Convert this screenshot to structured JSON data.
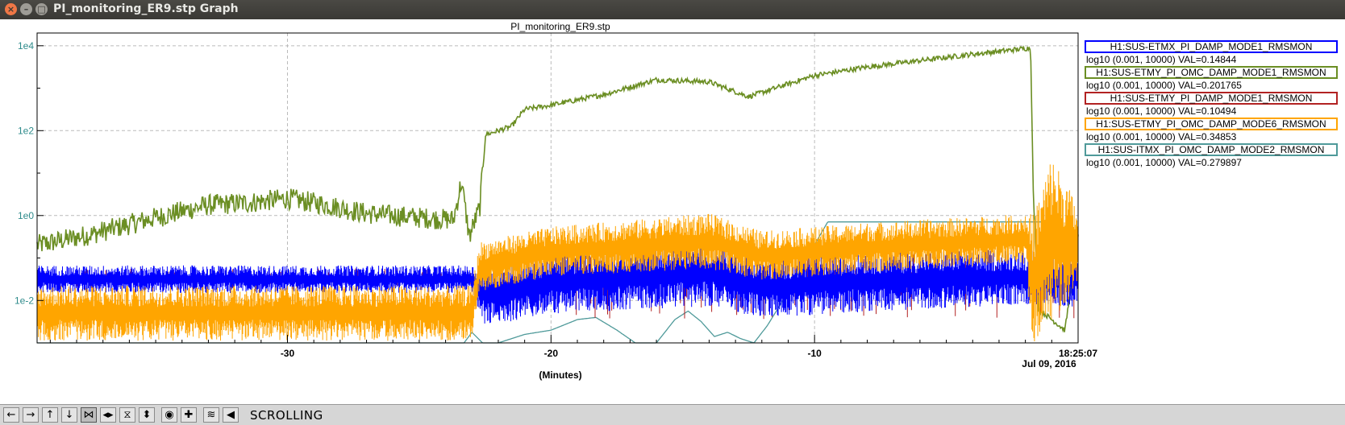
{
  "window": {
    "title": "PI_monitoring_ER9.stp Graph"
  },
  "toolbar": {
    "buttons": [
      {
        "name": "scroll-left-button",
        "icon": "arrow-left-icon",
        "glyph": "←"
      },
      {
        "name": "scroll-right-button",
        "icon": "arrow-right-icon",
        "glyph": "→"
      },
      {
        "name": "scroll-up-button",
        "icon": "arrow-up-icon",
        "glyph": "↑"
      },
      {
        "name": "scroll-down-button",
        "icon": "arrow-down-icon",
        "glyph": "↓"
      },
      {
        "name": "zoom-in-x-button",
        "icon": "zoom-in-x-icon",
        "glyph": "⋈"
      },
      {
        "name": "zoom-out-x-button",
        "icon": "zoom-out-x-icon",
        "glyph": "◂▸"
      },
      {
        "name": "zoom-in-y-button",
        "icon": "zoom-in-y-icon",
        "glyph": "⧖"
      },
      {
        "name": "zoom-out-y-button",
        "icon": "zoom-out-y-icon",
        "glyph": "⬍"
      },
      {
        "name": "default-scale-button",
        "icon": "circle-icon",
        "glyph": "◉"
      },
      {
        "name": "crosshair-button",
        "icon": "crosshair-icon",
        "glyph": "✚"
      },
      {
        "name": "autoscale-button",
        "icon": "autoscale-icon",
        "glyph": "≋"
      },
      {
        "name": "scroll-mode-button",
        "icon": "scroll-left-icon",
        "glyph": "◀"
      }
    ],
    "status": "SCROLLING"
  },
  "chart_data": {
    "type": "line",
    "title": "PI_monitoring_ER9.stp",
    "xlabel": "(Minutes)",
    "ylabel": "",
    "xlim": [
      -39.5,
      0
    ],
    "ylim_log10": [
      -3,
      4.3
    ],
    "y_scale": "log",
    "x_tick_labels": [
      "-30",
      "-20",
      "-10",
      "18:25:07"
    ],
    "x_tick_values": [
      -30,
      -20,
      -10,
      0
    ],
    "x_date_label": "Jul 09, 2016",
    "y_tick_labels": [
      "1e4",
      "1e2",
      "1e0",
      "1e-2"
    ],
    "y_tick_values": [
      10000,
      100,
      1,
      0.01
    ],
    "grid": true,
    "legend_placement": "right",
    "series": [
      {
        "name": "H1:SUS-ETMX_PI_DAMP_MODE1_RMSMON",
        "range_text": "log10 (0.001, 10000) VAL=0.14844",
        "color": "#0000ff",
        "style": "noise",
        "x": [
          -39.5,
          -23.0,
          -22.5,
          -20.0,
          -14.0,
          -12.0,
          -8.0,
          -2.0,
          0.0
        ],
        "y_center_log10": [
          -1.5,
          -1.5,
          -1.9,
          -1.6,
          -1.35,
          -1.7,
          -1.55,
          -1.45,
          -1.5
        ],
        "y_spread_log10": [
          0.25,
          0.25,
          0.55,
          0.55,
          0.6,
          0.55,
          0.55,
          0.5,
          0.5
        ]
      },
      {
        "name": "H1:SUS-ETMY_PI_OMC_DAMP_MODE1_RMSMON",
        "range_text": "log10 (0.001, 10000) VAL=0.201765",
        "color": "#6b8e23",
        "style": "line",
        "x": [
          -39.5,
          -37.5,
          -35.0,
          -33.0,
          -31.5,
          -30.0,
          -28.5,
          -27.0,
          -25.0,
          -23.7,
          -23.4,
          -23.1,
          -22.7,
          -22.5,
          -21.5,
          -21.0,
          -20.0,
          -18.0,
          -16.0,
          -14.0,
          -12.5,
          -12.0,
          -10.0,
          -8.0,
          -4.0,
          -1.8,
          -1.7,
          -1.5,
          -0.5,
          0.0
        ],
        "y_log10": [
          -0.7,
          -0.45,
          -0.05,
          0.25,
          0.3,
          0.4,
          0.25,
          0.05,
          -0.05,
          -0.1,
          0.8,
          -0.5,
          0.2,
          1.9,
          2.1,
          2.5,
          2.6,
          2.85,
          3.2,
          3.15,
          2.8,
          2.9,
          3.3,
          3.5,
          3.8,
          3.95,
          0.5,
          -2.2,
          -2.7,
          -0.5
        ]
      },
      {
        "name": "H1:SUS-ETMY_PI_DAMP_MODE1_RMSMON",
        "range_text": "log10 (0.001, 10000) VAL=0.10494",
        "color": "#b22222",
        "style": "spikes",
        "x": [
          -39.5,
          -23.0,
          -20.0,
          -10.0,
          0.0
        ],
        "y_center_log10": [
          -1.45,
          -1.45,
          -1.6,
          -1.6,
          -1.6
        ],
        "y_spread_log10": [
          0.15,
          0.15,
          0.5,
          0.5,
          0.5
        ]
      },
      {
        "name": "H1:SUS-ETMY_PI_OMC_DAMP_MODE6_RMSMON",
        "range_text": "log10 (0.001, 10000) VAL=0.34853",
        "color": "#ffa500",
        "style": "noise",
        "x": [
          -39.5,
          -23.0,
          -22.7,
          -20.0,
          -14.0,
          -12.0,
          -8.0,
          -2.0,
          -1.7,
          -1.0,
          0.0
        ],
        "y_center_log10": [
          -2.3,
          -2.3,
          -1.2,
          -0.85,
          -0.6,
          -0.95,
          -0.75,
          -0.55,
          -1.5,
          -0.5,
          -0.8
        ],
        "y_spread_log10": [
          0.5,
          0.5,
          0.45,
          0.45,
          0.5,
          0.45,
          0.45,
          0.45,
          1.2,
          1.5,
          0.8
        ]
      },
      {
        "name": "H1:SUS-ITMX_PI_OMC_DAMP_MODE2_RMSMON",
        "range_text": "log10 (0.001, 10000) VAL=0.279897",
        "color": "#4f9a9a",
        "style": "line",
        "x": [
          -39.5,
          -23.3,
          -23.0,
          -22.6,
          -22.0,
          -21.0,
          -20.0,
          -19.0,
          -18.3,
          -17.5,
          -16.8,
          -16.0,
          -15.3,
          -14.8,
          -14.3,
          -13.8,
          -13.3,
          -12.8,
          -12.3,
          -11.8,
          -11.3,
          -10.8,
          -9.5,
          -2.5,
          -1.0,
          0.0
        ],
        "y_log10": [
          -3,
          -3,
          -2.75,
          -3,
          -3,
          -2.8,
          -2.7,
          -2.45,
          -2.4,
          -2.7,
          -3,
          -3,
          -2.45,
          -2.25,
          -2.5,
          -2.85,
          -2.75,
          -2.9,
          -3,
          -2.6,
          -2.1,
          -1.55,
          -0.15,
          -0.15,
          -0.15,
          -0.5
        ]
      }
    ]
  }
}
